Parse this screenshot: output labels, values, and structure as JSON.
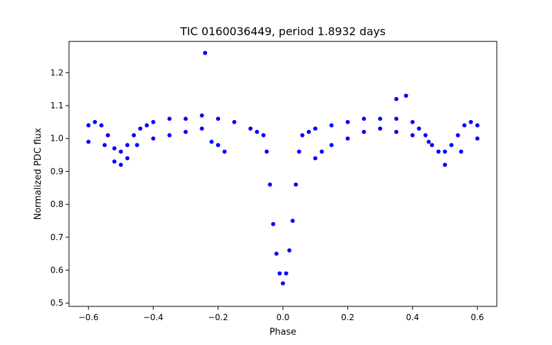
{
  "chart_data": {
    "type": "scatter",
    "title": "TIC 0160036449, period 1.8932 days",
    "xlabel": "Phase",
    "ylabel": "Normalized PDC flux",
    "xlim": [
      -0.66,
      0.66
    ],
    "ylim": [
      0.49,
      1.295
    ],
    "x_ticks": [
      -0.6,
      -0.4,
      -0.2,
      0.0,
      0.2,
      0.4,
      0.6
    ],
    "x_tick_labels": [
      "−0.6",
      "−0.4",
      "−0.2",
      "0.0",
      "0.2",
      "0.4",
      "0.6"
    ],
    "y_ticks": [
      0.5,
      0.6,
      0.7,
      0.8,
      0.9,
      1.0,
      1.1,
      1.2
    ],
    "y_tick_labels": [
      "0.5",
      "0.6",
      "0.7",
      "0.8",
      "0.9",
      "1.0",
      "1.1",
      "1.2"
    ],
    "grid": false,
    "marker_color": "#0000ff",
    "series": [
      {
        "x": [
          -0.6,
          -0.58,
          -0.56,
          -0.54,
          -0.52,
          -0.5,
          -0.48,
          -0.46,
          -0.44,
          -0.42,
          -0.4,
          -0.35,
          -0.3,
          -0.25,
          -0.2,
          -0.15,
          -0.1,
          -0.08,
          -0.06,
          -0.05,
          -0.04,
          -0.03,
          -0.02,
          -0.01,
          0.0,
          0.01,
          0.02,
          0.03,
          0.04,
          0.05,
          0.06,
          0.08,
          0.1,
          0.15,
          0.2,
          0.25,
          0.3,
          0.35,
          0.4,
          0.42,
          0.44,
          0.46,
          0.48,
          0.5,
          0.52,
          0.54,
          0.56,
          0.58,
          0.6,
          -0.6,
          -0.55,
          -0.52,
          -0.5,
          -0.48,
          -0.45,
          -0.4,
          -0.35,
          -0.3,
          -0.25,
          -0.22,
          -0.2,
          -0.18,
          0.1,
          0.12,
          0.15,
          0.2,
          0.25,
          0.3,
          0.35,
          0.4,
          0.45,
          0.5,
          0.55,
          0.6,
          -0.24,
          0.35,
          0.38
        ],
        "y": [
          1.04,
          1.05,
          1.04,
          1.01,
          0.97,
          0.96,
          0.98,
          1.01,
          1.03,
          1.04,
          1.05,
          1.06,
          1.06,
          1.07,
          1.06,
          1.05,
          1.03,
          1.02,
          1.01,
          0.96,
          0.86,
          0.74,
          0.65,
          0.59,
          0.56,
          0.59,
          0.66,
          0.75,
          0.86,
          0.96,
          1.01,
          1.02,
          1.03,
          1.04,
          1.05,
          1.06,
          1.06,
          1.06,
          1.05,
          1.03,
          1.01,
          0.98,
          0.96,
          0.96,
          0.98,
          1.01,
          1.04,
          1.05,
          1.04,
          0.99,
          0.98,
          0.93,
          0.92,
          0.94,
          0.98,
          1.0,
          1.01,
          1.02,
          1.03,
          0.99,
          0.98,
          0.96,
          0.94,
          0.96,
          0.98,
          1.0,
          1.02,
          1.03,
          1.02,
          1.01,
          0.99,
          0.92,
          0.96,
          1.0,
          1.26,
          1.12,
          1.13
        ]
      }
    ]
  }
}
